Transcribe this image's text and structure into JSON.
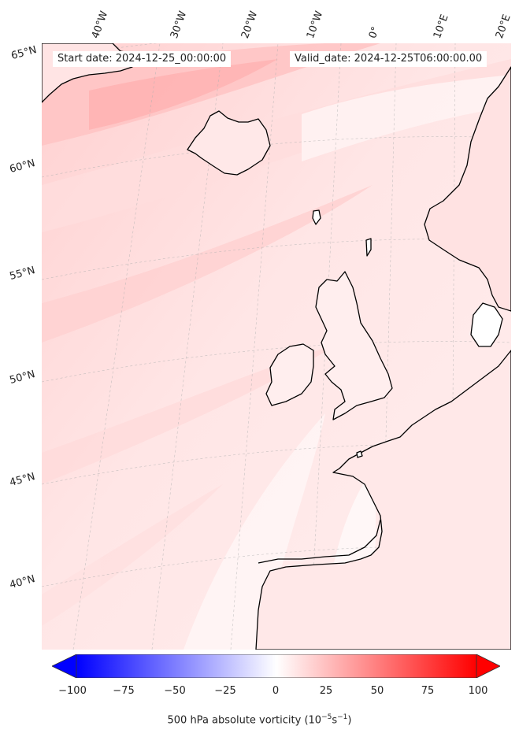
{
  "map": {
    "header": {
      "start_date": "Start date: 2024-12-25_00:00:00",
      "valid_date": "Valid_date: 2024-12-25T06:00:00.00"
    },
    "lon_labels": [
      "40°W",
      "30°W",
      "20°W",
      "10°W",
      "0°",
      "10°E",
      "20°E"
    ],
    "lat_labels": [
      "65°N",
      "60°N",
      "55°N",
      "50°N",
      "45°N",
      "40°N"
    ],
    "colors": {
      "negative": "#0000ff",
      "zero": "#ffffff",
      "positive": "#ff0000",
      "coastline": "#000000"
    }
  },
  "colorbar": {
    "ticks": [
      "−100",
      "−75",
      "−50",
      "−25",
      "0",
      "25",
      "50",
      "75",
      "100"
    ],
    "range": [
      -100,
      100
    ],
    "label": "500 hPa absolute vorticity (10",
    "label_exp1": "−5",
    "label_mid": "s",
    "label_exp2": "−1",
    "label_end": ")"
  }
}
